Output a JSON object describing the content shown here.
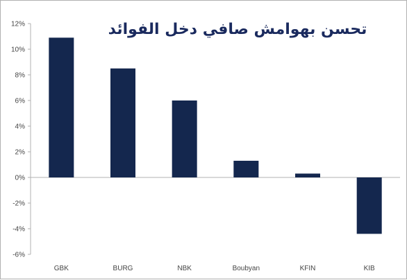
{
  "chart_data": {
    "type": "bar",
    "title": "تحسن بهوامش صافي دخل الفوائد",
    "xlabel": "",
    "ylabel": "",
    "categories": [
      "GBK",
      "BURG",
      "NBK",
      "Boubyan",
      "KFIN",
      "KIB"
    ],
    "values": [
      10.9,
      8.5,
      6.0,
      1.3,
      0.3,
      -4.4
    ],
    "ylim": [
      -6,
      12
    ],
    "yticks": [
      "12%",
      "10%",
      "8%",
      "6%",
      "4%",
      "2%",
      "0%",
      "-2%",
      "-4%",
      "-6%"
    ],
    "ytick_values": [
      12,
      10,
      8,
      6,
      4,
      2,
      0,
      -2,
      -4,
      -6
    ],
    "grid": false,
    "legend": "none",
    "bar_color": "#14274e",
    "axis_color": "#b0b0b0"
  }
}
